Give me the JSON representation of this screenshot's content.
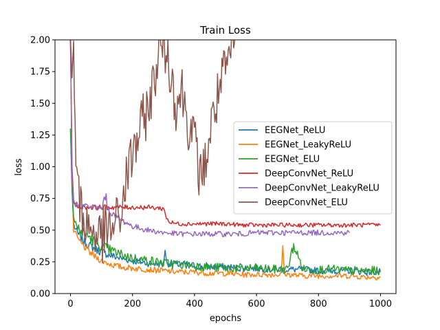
{
  "chart_data": {
    "type": "line",
    "title": "Train Loss",
    "xlabel": "epochs",
    "ylabel": "loss",
    "xlim": [
      -50,
      1050
    ],
    "ylim": [
      0,
      2.0
    ],
    "xticks": [
      0,
      200,
      400,
      600,
      800,
      1000
    ],
    "xtick_labels": [
      "0",
      "200",
      "400",
      "600",
      "800",
      "1000"
    ],
    "yticks": [
      0,
      0.25,
      0.5,
      0.75,
      1.0,
      1.25,
      1.5,
      1.75,
      2.0
    ],
    "ytick_labels": [
      "0.00",
      "0.25",
      "0.50",
      "0.75",
      "1.00",
      "1.25",
      "1.50",
      "1.75",
      "2.00"
    ],
    "grid": false,
    "legend_position": "center-right",
    "series": [
      {
        "name": "EEGNet_ReLU",
        "color": "#1f77b4",
        "x": [
          0,
          5,
          10,
          20,
          40,
          60,
          80,
          100,
          130,
          160,
          200,
          250,
          300,
          305,
          310,
          350,
          400,
          450,
          500,
          550,
          600,
          650,
          700,
          750,
          800,
          850,
          900,
          950,
          1000
        ],
        "y": [
          1.3,
          0.8,
          0.55,
          0.48,
          0.42,
          0.38,
          0.35,
          0.33,
          0.3,
          0.28,
          0.26,
          0.24,
          0.23,
          0.36,
          0.24,
          0.23,
          0.22,
          0.21,
          0.21,
          0.2,
          0.2,
          0.19,
          0.19,
          0.19,
          0.18,
          0.18,
          0.18,
          0.17,
          0.17
        ]
      },
      {
        "name": "EEGNet_LeakyReLU",
        "color": "#ff7f0e",
        "x": [
          0,
          5,
          10,
          20,
          40,
          60,
          80,
          100,
          130,
          160,
          200,
          250,
          300,
          350,
          400,
          450,
          500,
          550,
          600,
          650,
          680,
          685,
          690,
          700,
          750,
          800,
          850,
          900,
          950,
          1000
        ],
        "y": [
          2.0,
          0.9,
          0.5,
          0.44,
          0.38,
          0.33,
          0.29,
          0.26,
          0.23,
          0.21,
          0.2,
          0.19,
          0.18,
          0.17,
          0.17,
          0.16,
          0.16,
          0.15,
          0.15,
          0.15,
          0.15,
          0.38,
          0.16,
          0.15,
          0.14,
          0.14,
          0.14,
          0.14,
          0.13,
          0.13
        ]
      },
      {
        "name": "EEGNet_ELU",
        "color": "#2ca02c",
        "x": [
          0,
          5,
          10,
          20,
          40,
          60,
          80,
          100,
          130,
          160,
          200,
          250,
          300,
          350,
          400,
          450,
          500,
          550,
          600,
          650,
          700,
          720,
          750,
          800,
          850,
          900,
          950,
          1000
        ],
        "y": [
          1.3,
          0.85,
          0.6,
          0.52,
          0.48,
          0.45,
          0.4,
          0.37,
          0.34,
          0.31,
          0.28,
          0.26,
          0.24,
          0.23,
          0.22,
          0.21,
          0.2,
          0.2,
          0.2,
          0.19,
          0.19,
          0.38,
          0.19,
          0.19,
          0.19,
          0.18,
          0.18,
          0.18
        ]
      },
      {
        "name": "DeepConvNet_ReLU",
        "color": "#d62728",
        "x": [
          0,
          5,
          10,
          20,
          50,
          100,
          150,
          200,
          250,
          300,
          310,
          320,
          350,
          400,
          450,
          500,
          550,
          600,
          650,
          700,
          750,
          800,
          850,
          900,
          950,
          1000
        ],
        "y": [
          2.0,
          1.0,
          0.72,
          0.69,
          0.68,
          0.68,
          0.68,
          0.68,
          0.68,
          0.67,
          0.6,
          0.56,
          0.55,
          0.55,
          0.55,
          0.55,
          0.54,
          0.54,
          0.54,
          0.54,
          0.54,
          0.54,
          0.54,
          0.54,
          0.54,
          0.54
        ]
      },
      {
        "name": "DeepConvNet_LeakyReLU",
        "color": "#9467bd",
        "x": [
          0,
          5,
          10,
          20,
          50,
          100,
          115,
          120,
          150,
          200,
          250,
          300,
          350,
          400,
          450,
          500,
          550,
          600,
          650,
          700,
          750,
          800,
          850,
          900
        ],
        "y": [
          2.0,
          0.9,
          0.72,
          0.7,
          0.69,
          0.67,
          0.78,
          0.66,
          0.6,
          0.53,
          0.5,
          0.48,
          0.47,
          0.47,
          0.47,
          0.47,
          0.47,
          0.48,
          0.48,
          0.48,
          0.48,
          0.48,
          0.48,
          0.48
        ]
      },
      {
        "name": "DeepConvNet_ELU",
        "color": "#8c564b",
        "x": [
          0,
          5,
          10,
          15,
          20,
          30,
          50,
          80,
          100,
          130,
          160,
          180,
          200,
          220,
          240,
          260,
          280,
          300,
          320,
          340,
          360,
          380,
          400,
          420,
          440,
          460,
          480,
          500,
          520,
          530
        ],
        "y": [
          2.0,
          1.7,
          2.0,
          1.3,
          0.9,
          0.7,
          0.55,
          0.48,
          0.45,
          0.5,
          0.6,
          0.9,
          1.1,
          1.25,
          1.4,
          1.55,
          1.85,
          2.0,
          1.8,
          1.5,
          1.6,
          1.35,
          1.2,
          0.9,
          1.1,
          1.4,
          1.6,
          1.75,
          1.9,
          2.0
        ]
      }
    ]
  }
}
